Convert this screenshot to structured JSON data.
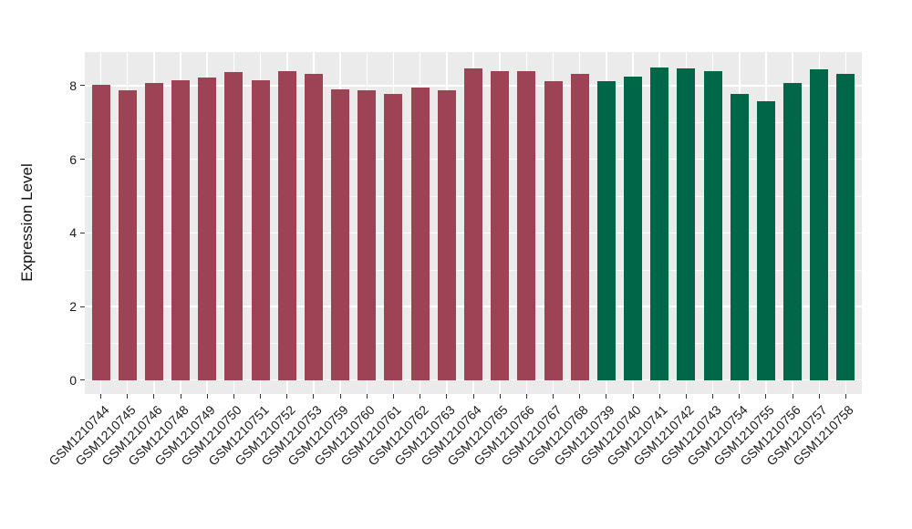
{
  "figure": {
    "background": "#FFFFFF",
    "panel_background": "#EBEBEB",
    "gridline_color": "#FFFFFF",
    "tick_mark_color": "#333333",
    "text_color": "#1A1A1A"
  },
  "chart_data": {
    "type": "bar",
    "title": "",
    "xlabel": "",
    "ylabel": "Expression Level",
    "y_ticks": [
      0,
      2,
      4,
      6,
      8
    ],
    "y_minor_ticks": [
      1,
      3,
      5,
      7
    ],
    "ylim": [
      -0.42,
      8.91
    ],
    "grid": "white major and minor horizontal lines plus vertical category lines on grey panel",
    "legend": "none",
    "categories": [
      "GSM1210744",
      "GSM1210745",
      "GSM1210746",
      "GSM1210748",
      "GSM1210749",
      "GSM1210750",
      "GSM1210751",
      "GSM1210752",
      "GSM1210753",
      "GSM1210759",
      "GSM1210760",
      "GSM1210761",
      "GSM1210762",
      "GSM1210763",
      "GSM1210764",
      "GSM1210765",
      "GSM1210766",
      "GSM1210767",
      "GSM1210768",
      "GSM1210739",
      "GSM1210740",
      "GSM1210741",
      "GSM1210742",
      "GSM1210743",
      "GSM1210754",
      "GSM1210755",
      "GSM1210756",
      "GSM1210757",
      "GSM1210758"
    ],
    "values": [
      8.02,
      7.87,
      8.08,
      8.14,
      8.21,
      8.37,
      8.15,
      8.39,
      8.33,
      7.89,
      7.87,
      7.78,
      7.96,
      7.87,
      8.48,
      8.4,
      8.4,
      8.11,
      8.31,
      8.13,
      8.24,
      8.49,
      8.46,
      8.39,
      7.78,
      7.58,
      8.07,
      8.45,
      8.33
    ],
    "group1_color": "#9D4355",
    "group1_count": 19,
    "group2_color": "#006648",
    "group2_count": 10
  }
}
